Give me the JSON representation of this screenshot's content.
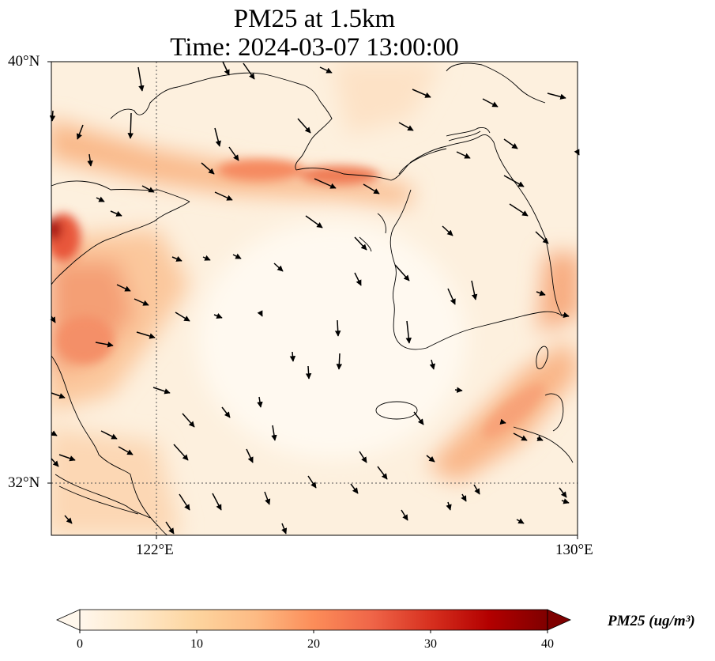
{
  "title": {
    "line1": "PM25 at 1.5km",
    "line2": "Time: 2024-03-07 13:00:00"
  },
  "axes": {
    "lat_ticks": [
      "40°N",
      "32°N"
    ],
    "lon_ticks": [
      "122°E",
      "130°E"
    ]
  },
  "colorbar": {
    "label": "PM25 (ug/m³)",
    "ticks": [
      "0",
      "10",
      "20",
      "30",
      "40"
    ],
    "colormap": "OrRd",
    "colors": [
      "#fff7ec",
      "#fee8c8",
      "#fdd49e",
      "#fdbb84",
      "#fc8d59",
      "#ef6548",
      "#d7301f",
      "#b30000",
      "#7f0000"
    ]
  },
  "chart_data": {
    "type": "heatmap",
    "variable": "PM25",
    "unit": "ug/m³",
    "level": "1.5km",
    "time": "2024-03-07 13:00:00",
    "value_range": [
      0,
      40
    ],
    "lon_range": [
      120,
      130
    ],
    "lat_range": [
      31,
      40
    ],
    "gridlines": {
      "lon": [
        122
      ],
      "lat": [
        32
      ]
    },
    "overlay": "wind vectors (arrows), predominantly north-westerly flow toward the south-east",
    "features": [
      "coastlines",
      "country borders"
    ]
  }
}
